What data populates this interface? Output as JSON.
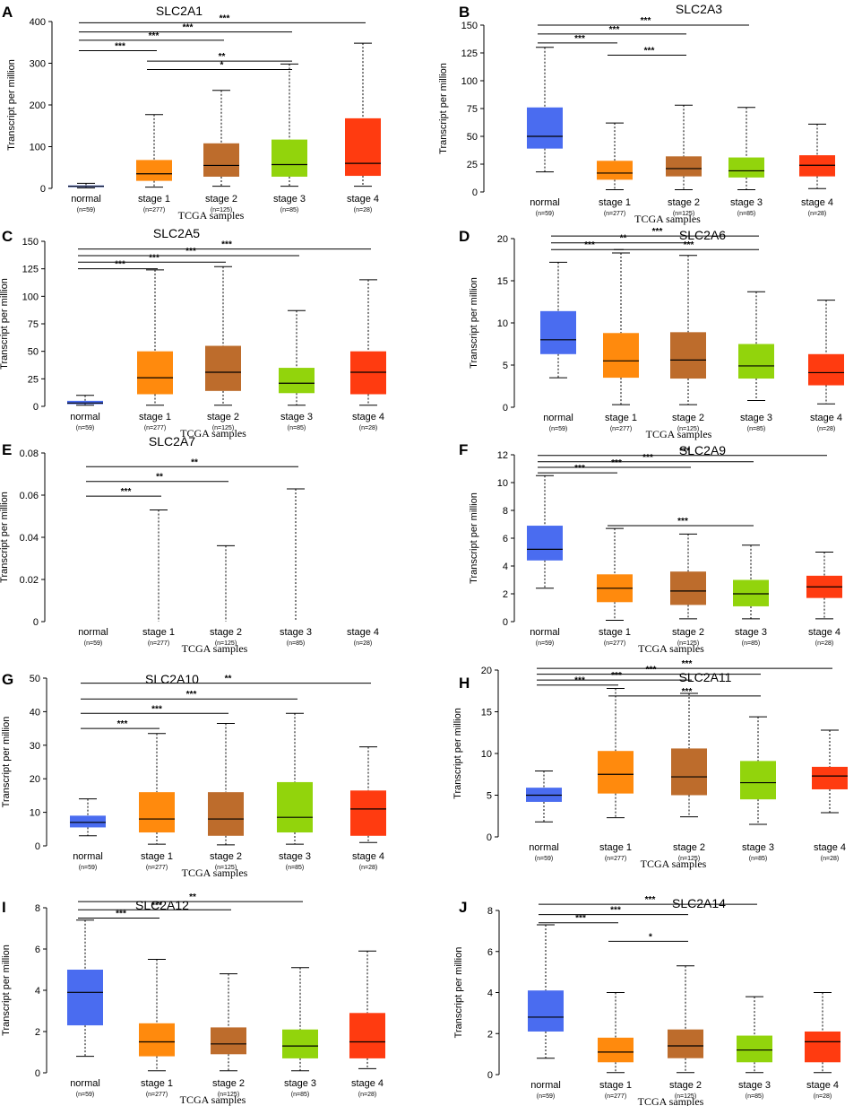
{
  "colors": {
    "normal": "#4a6cf0",
    "stage 1": "#ff8a0d",
    "stage 2": "#bd6c2c",
    "stage 3": "#92d40c",
    "stage 4": "#ff3b10"
  },
  "shared": {
    "categories": [
      "normal",
      "stage 1",
      "stage 2",
      "stage 3",
      "stage 4"
    ],
    "n_labels": [
      "(n=59)",
      "(n=277)",
      "(n=125)",
      "(n=85)",
      "(n=28)"
    ],
    "ylabel": "Transcript per million",
    "xlabel": "TCGA samples"
  },
  "chart_data": [
    {
      "id": "A",
      "type": "box",
      "title": "SLC2A1",
      "ylabel": "Transcript per million",
      "xlabel": "TCGA samples",
      "n_labels": [
        "(n=59)",
        "(n=277)",
        "(n=125)",
        "(n=85)",
        "(n=28)"
      ],
      "categories": [
        "normal",
        "stage 1",
        "stage 2",
        "stage 3",
        "stage 4"
      ],
      "ylim": [
        0,
        400
      ],
      "yticks": [
        "0",
        "100",
        "200",
        "300",
        "400"
      ],
      "boxes": [
        {
          "min": 1,
          "q1": 3,
          "median": 5,
          "q3": 7,
          "max": 12
        },
        {
          "min": 3,
          "q1": 18,
          "median": 35,
          "q3": 68,
          "max": 177
        },
        {
          "min": 5,
          "q1": 28,
          "median": 55,
          "q3": 108,
          "max": 235
        },
        {
          "min": 5,
          "q1": 28,
          "median": 57,
          "q3": 117,
          "max": 298
        },
        {
          "min": 5,
          "q1": 30,
          "median": 60,
          "q3": 168,
          "max": 348
        }
      ],
      "significance": [
        {
          "from": 0,
          "to": 1,
          "label": "***",
          "y": 330
        },
        {
          "from": 1,
          "to": 3,
          "label": "*",
          "y": 285
        },
        {
          "from": 1,
          "to": 3,
          "label": "**",
          "y": 305
        },
        {
          "from": 0,
          "to": 2,
          "label": "***",
          "y": 355
        },
        {
          "from": 0,
          "to": 3,
          "label": "***",
          "y": 375
        },
        {
          "from": 0,
          "to": 4,
          "label": "***",
          "y": 397
        }
      ]
    },
    {
      "id": "B",
      "type": "box",
      "title": "SLC2A3",
      "ylabel": "Transcript per million",
      "xlabel": "TCGA samples",
      "n_labels": [
        "(n=59)",
        "(n=277)",
        "(n=125)",
        "(n=85)",
        "(n=28)"
      ],
      "categories": [
        "normal",
        "stage 1",
        "stage 2",
        "stage 3",
        "stage 4"
      ],
      "ylim": [
        0,
        150
      ],
      "yticks": [
        "0",
        "25",
        "50",
        "75",
        "100",
        "125",
        "150"
      ],
      "boxes": [
        {
          "min": 18,
          "q1": 39,
          "median": 50,
          "q3": 76,
          "max": 130
        },
        {
          "min": 2,
          "q1": 11,
          "median": 17,
          "q3": 28,
          "max": 62
        },
        {
          "min": 2,
          "q1": 14,
          "median": 21,
          "q3": 32,
          "max": 78
        },
        {
          "min": 2,
          "q1": 13,
          "median": 19,
          "q3": 31,
          "max": 76
        },
        {
          "min": 3,
          "q1": 14,
          "median": 24,
          "q3": 33,
          "max": 61
        }
      ],
      "significance": [
        {
          "from": 0,
          "to": 1,
          "label": "***",
          "y": 134
        },
        {
          "from": 1,
          "to": 2,
          "label": "***",
          "y": 123
        },
        {
          "from": 0,
          "to": 2,
          "label": "***",
          "y": 142
        },
        {
          "from": 0,
          "to": 3,
          "label": "***",
          "y": 150
        }
      ]
    },
    {
      "id": "C",
      "type": "box",
      "title": "SLC2A5",
      "ylabel": "Transcript per million",
      "xlabel": "TCGA samples",
      "n_labels": [
        "(n=59)",
        "(n=277)",
        "(n=125)",
        "(n=85)",
        "(n=28)"
      ],
      "categories": [
        "normal",
        "stage 1",
        "stage 2",
        "stage 3",
        "stage 4"
      ],
      "ylim": [
        0,
        150
      ],
      "yticks": [
        "0",
        "25",
        "50",
        "75",
        "100",
        "125",
        "150"
      ],
      "boxes": [
        {
          "min": 1,
          "q1": 2,
          "median": 3,
          "q3": 5,
          "max": 10
        },
        {
          "min": 1,
          "q1": 11,
          "median": 26,
          "q3": 50,
          "max": 124
        },
        {
          "min": 1,
          "q1": 14,
          "median": 31,
          "q3": 55,
          "max": 127
        },
        {
          "min": 1,
          "q1": 12,
          "median": 21,
          "q3": 35,
          "max": 87
        },
        {
          "min": 1,
          "q1": 11,
          "median": 31,
          "q3": 50,
          "max": 115
        }
      ],
      "significance": [
        {
          "from": 0,
          "to": 1,
          "label": "***",
          "y": 125
        },
        {
          "from": 0,
          "to": 2,
          "label": "***",
          "y": 131
        },
        {
          "from": 0,
          "to": 3,
          "label": "***",
          "y": 137
        },
        {
          "from": 0,
          "to": 4,
          "label": "***",
          "y": 143
        }
      ]
    },
    {
      "id": "D",
      "type": "box",
      "title": "SLC2A6",
      "ylabel": "Transcript per million",
      "xlabel": "TCGA samples",
      "n_labels": [
        "(n=59)",
        "(n=277)",
        "(n=125)",
        "(n=85)",
        "(n=28)"
      ],
      "categories": [
        "normal",
        "stage 1",
        "stage 2",
        "stage 3",
        "stage 4"
      ],
      "ylim": [
        0,
        20
      ],
      "yticks": [
        "0",
        "5",
        "10",
        "15",
        "20"
      ],
      "boxes": [
        {
          "min": 3.5,
          "q1": 6.3,
          "median": 8.0,
          "q3": 11.4,
          "max": 17.2
        },
        {
          "min": 0.3,
          "q1": 3.5,
          "median": 5.5,
          "q3": 8.8,
          "max": 18.3
        },
        {
          "min": 0.3,
          "q1": 3.4,
          "median": 5.6,
          "q3": 8.9,
          "max": 18.0
        },
        {
          "min": 0.8,
          "q1": 3.4,
          "median": 4.9,
          "q3": 7.5,
          "max": 13.7
        },
        {
          "min": 0.4,
          "q1": 2.6,
          "median": 4.1,
          "q3": 6.3,
          "max": 12.7
        }
      ],
      "significance": [
        {
          "from": 0,
          "to": 1,
          "label": "***",
          "y": 18.7
        },
        {
          "from": 1,
          "to": 3,
          "label": "***",
          "y": 18.7
        },
        {
          "from": 0,
          "to": 2,
          "label": "**",
          "y": 19.5
        },
        {
          "from": 0,
          "to": 3,
          "label": "***",
          "y": 20.3
        }
      ]
    },
    {
      "id": "E",
      "type": "box",
      "title": "SLC2A7",
      "ylabel": "Transcript per million",
      "xlabel": "TCGA samples",
      "n_labels": [
        "(n=59)",
        "(n=277)",
        "(n=125)",
        "(n=85)",
        "(n=28)"
      ],
      "categories": [
        "normal",
        "stage 1",
        "stage 2",
        "stage 3",
        "stage 4"
      ],
      "ylim": [
        0,
        0.08
      ],
      "yticks": [
        "0",
        "0.02",
        "0.04",
        "0.06",
        "0.08"
      ],
      "boxes": [
        {
          "min": 0,
          "q1": 0,
          "median": 0,
          "q3": 0,
          "max": 0
        },
        {
          "min": 0,
          "q1": 0,
          "median": 0,
          "q3": 0,
          "max": 0.053
        },
        {
          "min": 0,
          "q1": 0,
          "median": 0,
          "q3": 0,
          "max": 0.036
        },
        {
          "min": 0,
          "q1": 0,
          "median": 0,
          "q3": 0,
          "max": 0.063
        },
        {
          "min": 0,
          "q1": 0,
          "median": 0,
          "q3": 0,
          "max": 0
        }
      ],
      "significance": [
        {
          "from": 0,
          "to": 1,
          "label": "***",
          "y": 0.0595
        },
        {
          "from": 0,
          "to": 2,
          "label": "**",
          "y": 0.0665
        },
        {
          "from": 0,
          "to": 3,
          "label": "**",
          "y": 0.0735
        }
      ]
    },
    {
      "id": "F",
      "type": "box",
      "title": "SLC2A9",
      "ylabel": "Transcript per million",
      "xlabel": "TCGA samples",
      "n_labels": [
        "(n=59)",
        "(n=277)",
        "(n=125)",
        "(n=85)",
        "(n=28)"
      ],
      "categories": [
        "normal",
        "stage 1",
        "stage 2",
        "stage 3",
        "stage 4"
      ],
      "ylim": [
        0,
        12
      ],
      "yticks": [
        "0",
        "2",
        "4",
        "6",
        "8",
        "10",
        "12"
      ],
      "boxes": [
        {
          "min": 2.4,
          "q1": 4.4,
          "median": 5.2,
          "q3": 6.9,
          "max": 10.5
        },
        {
          "min": 0.1,
          "q1": 1.4,
          "median": 2.4,
          "q3": 3.4,
          "max": 6.7
        },
        {
          "min": 0.2,
          "q1": 1.2,
          "median": 2.2,
          "q3": 3.6,
          "max": 6.3
        },
        {
          "min": 0.2,
          "q1": 1.1,
          "median": 2.0,
          "q3": 3.0,
          "max": 5.5
        },
        {
          "min": 0.2,
          "q1": 1.7,
          "median": 2.5,
          "q3": 3.3,
          "max": 5.0
        }
      ],
      "significance": [
        {
          "from": 0,
          "to": 1,
          "label": "***",
          "y": 10.7
        },
        {
          "from": 1,
          "to": 3,
          "label": "***",
          "y": 6.9
        },
        {
          "from": 0,
          "to": 2,
          "label": "***",
          "y": 11.1
        },
        {
          "from": 0,
          "to": 3,
          "label": "***",
          "y": 11.5
        },
        {
          "from": 0,
          "to": 4,
          "label": "***",
          "y": 11.95
        }
      ]
    },
    {
      "id": "G",
      "type": "box",
      "title": "SLC2A10",
      "ylabel": "Transcript per million",
      "xlabel": "TCGA samples",
      "n_labels": [
        "(n=59)",
        "(n=277)",
        "(n=125)",
        "(n=85)",
        "(n=28)"
      ],
      "categories": [
        "normal",
        "stage 1",
        "stage 2",
        "stage 3",
        "stage 4"
      ],
      "ylim": [
        0,
        50
      ],
      "yticks": [
        "0",
        "10",
        "20",
        "30",
        "40",
        "50"
      ],
      "boxes": [
        {
          "min": 3,
          "q1": 5.5,
          "median": 7,
          "q3": 9,
          "max": 14
        },
        {
          "min": 0.5,
          "q1": 4,
          "median": 8,
          "q3": 16,
          "max": 33.5
        },
        {
          "min": 0.3,
          "q1": 3,
          "median": 8,
          "q3": 16,
          "max": 36.5
        },
        {
          "min": 0.5,
          "q1": 4,
          "median": 8.5,
          "q3": 19,
          "max": 39.5
        },
        {
          "min": 1,
          "q1": 3,
          "median": 11,
          "q3": 16.5,
          "max": 29.5
        }
      ],
      "significance": [
        {
          "from": 0,
          "to": 1,
          "label": "***",
          "y": 35
        },
        {
          "from": 0,
          "to": 2,
          "label": "***",
          "y": 39.5
        },
        {
          "from": 0,
          "to": 3,
          "label": "***",
          "y": 43.8
        },
        {
          "from": 0,
          "to": 4,
          "label": "**",
          "y": 48.5
        }
      ]
    },
    {
      "id": "H",
      "type": "box",
      "title": "SLC2A11",
      "ylabel": "Transcript per million",
      "xlabel": "TCGA samples",
      "n_labels": [
        "(n=59)",
        "(n=277)",
        "(n=125)",
        "(n=85)",
        "(n=28)"
      ],
      "categories": [
        "normal",
        "stage 1",
        "stage 2",
        "stage 3",
        "stage 4"
      ],
      "ylim": [
        0,
        20
      ],
      "yticks": [
        "0",
        "5",
        "10",
        "15",
        "20"
      ],
      "boxes": [
        {
          "min": 1.8,
          "q1": 4.2,
          "median": 5.0,
          "q3": 5.9,
          "max": 7.9
        },
        {
          "min": 2.3,
          "q1": 5.2,
          "median": 7.5,
          "q3": 10.3,
          "max": 17.8
        },
        {
          "min": 2.4,
          "q1": 5.0,
          "median": 7.2,
          "q3": 10.6,
          "max": 17.2
        },
        {
          "min": 1.5,
          "q1": 4.5,
          "median": 6.5,
          "q3": 9.1,
          "max": 14.4
        },
        {
          "min": 2.9,
          "q1": 5.7,
          "median": 7.3,
          "q3": 8.4,
          "max": 12.8
        }
      ],
      "significance": [
        {
          "from": 0,
          "to": 1,
          "label": "***",
          "y": 18.2
        },
        {
          "from": 1,
          "to": 3,
          "label": "***",
          "y": 16.9
        },
        {
          "from": 0,
          "to": 2,
          "label": "***",
          "y": 18.8
        },
        {
          "from": 0,
          "to": 3,
          "label": "***",
          "y": 19.5
        },
        {
          "from": 0,
          "to": 4,
          "label": "***",
          "y": 20.2
        }
      ]
    },
    {
      "id": "I",
      "type": "box",
      "title": "SLC2A12",
      "ylabel": "Transcript per million",
      "xlabel": "TCGA samples",
      "n_labels": [
        "(n=59)",
        "(n=277)",
        "(n=125)",
        "(n=85)",
        "(n=28)"
      ],
      "categories": [
        "normal",
        "stage 1",
        "stage 2",
        "stage 3",
        "stage 4"
      ],
      "ylim": [
        0,
        8
      ],
      "yticks": [
        "0",
        "2",
        "4",
        "6",
        "8"
      ],
      "boxes": [
        {
          "min": 0.8,
          "q1": 2.3,
          "median": 3.9,
          "q3": 5.0,
          "max": 7.4
        },
        {
          "min": 0.1,
          "q1": 0.8,
          "median": 1.5,
          "q3": 2.4,
          "max": 5.5
        },
        {
          "min": 0.1,
          "q1": 0.9,
          "median": 1.4,
          "q3": 2.2,
          "max": 4.8
        },
        {
          "min": 0.1,
          "q1": 0.7,
          "median": 1.3,
          "q3": 2.1,
          "max": 5.1
        },
        {
          "min": 0.2,
          "q1": 0.7,
          "median": 1.5,
          "q3": 2.9,
          "max": 5.9
        }
      ],
      "significance": [
        {
          "from": 0,
          "to": 1,
          "label": "***",
          "y": 7.5
        },
        {
          "from": 0,
          "to": 2,
          "label": "***",
          "y": 7.9
        },
        {
          "from": 0,
          "to": 3,
          "label": "**",
          "y": 8.3
        }
      ]
    },
    {
      "id": "J",
      "type": "box",
      "title": "SLC2A14",
      "ylabel": "Transcript per million",
      "xlabel": "TCGA samples",
      "n_labels": [
        "(n=59)",
        "(n=277)",
        "(n=125)",
        "(n=85)",
        "(n=28)"
      ],
      "categories": [
        "normal",
        "stage 1",
        "stage 2",
        "stage 3",
        "stage 4"
      ],
      "ylim": [
        0,
        8
      ],
      "yticks": [
        "0",
        "2",
        "4",
        "6",
        "8"
      ],
      "boxes": [
        {
          "min": 0.8,
          "q1": 2.1,
          "median": 2.8,
          "q3": 4.1,
          "max": 7.3
        },
        {
          "min": 0.1,
          "q1": 0.6,
          "median": 1.1,
          "q3": 1.8,
          "max": 4.0
        },
        {
          "min": 0.1,
          "q1": 0.8,
          "median": 1.4,
          "q3": 2.2,
          "max": 5.3
        },
        {
          "min": 0.1,
          "q1": 0.6,
          "median": 1.2,
          "q3": 1.9,
          "max": 3.8
        },
        {
          "min": 0.1,
          "q1": 0.6,
          "median": 1.6,
          "q3": 2.1,
          "max": 4.0
        }
      ],
      "significance": [
        {
          "from": 0,
          "to": 1,
          "label": "***",
          "y": 7.4
        },
        {
          "from": 1,
          "to": 2,
          "label": "*",
          "y": 6.5
        },
        {
          "from": 0,
          "to": 2,
          "label": "***",
          "y": 7.8
        },
        {
          "from": 0,
          "to": 3,
          "label": "***",
          "y": 8.3
        }
      ]
    }
  ]
}
